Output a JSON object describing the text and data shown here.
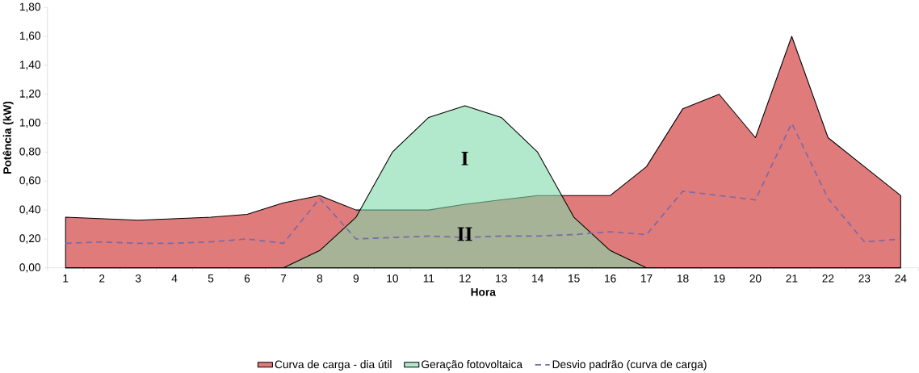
{
  "chart_data": {
    "type": "area",
    "xlabel": "Hora",
    "ylabel": "Potência (kW)",
    "categories": [
      "1",
      "2",
      "3",
      "4",
      "5",
      "6",
      "7",
      "8",
      "9",
      "10",
      "11",
      "12",
      "13",
      "14",
      "15",
      "16",
      "17",
      "18",
      "19",
      "20",
      "21",
      "22",
      "23",
      "24"
    ],
    "series": [
      {
        "name": "Curva de carga - dia útil",
        "color": "#e07b7b",
        "values": [
          0.35,
          0.34,
          0.33,
          0.34,
          0.35,
          0.37,
          0.45,
          0.5,
          0.4,
          0.4,
          0.4,
          0.44,
          0.47,
          0.5,
          0.5,
          0.5,
          0.7,
          1.1,
          1.2,
          0.9,
          1.6,
          0.9,
          0.7,
          0.5
        ]
      },
      {
        "name": "Geração fotovoltaica",
        "color": "#7fd8a8",
        "values": [
          0,
          0,
          0,
          0,
          0,
          0,
          0,
          0.12,
          0.35,
          0.8,
          1.04,
          1.12,
          1.04,
          0.8,
          0.35,
          0.12,
          0,
          0,
          0,
          0,
          0,
          0,
          0,
          0
        ]
      },
      {
        "name": "Desvio padrão (curva de carga)",
        "type": "line",
        "line_style": "dashed",
        "color": "#7a6aa8",
        "values": [
          0.17,
          0.18,
          0.17,
          0.17,
          0.18,
          0.2,
          0.17,
          0.48,
          0.2,
          0.21,
          0.22,
          0.21,
          0.22,
          0.22,
          0.23,
          0.25,
          0.23,
          0.53,
          0.5,
          0.47,
          1.0,
          0.48,
          0.18,
          0.2
        ]
      }
    ],
    "ylim": [
      0,
      1.8
    ],
    "yticks": [
      {
        "value": 0,
        "label": "0,00"
      },
      {
        "value": 0.2,
        "label": "0,20"
      },
      {
        "value": 0.4,
        "label": "0,40"
      },
      {
        "value": 0.6,
        "label": "0,60"
      },
      {
        "value": 0.8,
        "label": "0,80"
      },
      {
        "value": 1.0,
        "label": "1,00"
      },
      {
        "value": 1.2,
        "label": "1,20"
      },
      {
        "value": 1.4,
        "label": "1,40"
      },
      {
        "value": 1.6,
        "label": "1,60"
      },
      {
        "value": 1.8,
        "label": "1,80"
      }
    ],
    "annotations": [
      "I",
      "II"
    ],
    "legend": "bottom",
    "grid": false,
    "marker": "none"
  }
}
